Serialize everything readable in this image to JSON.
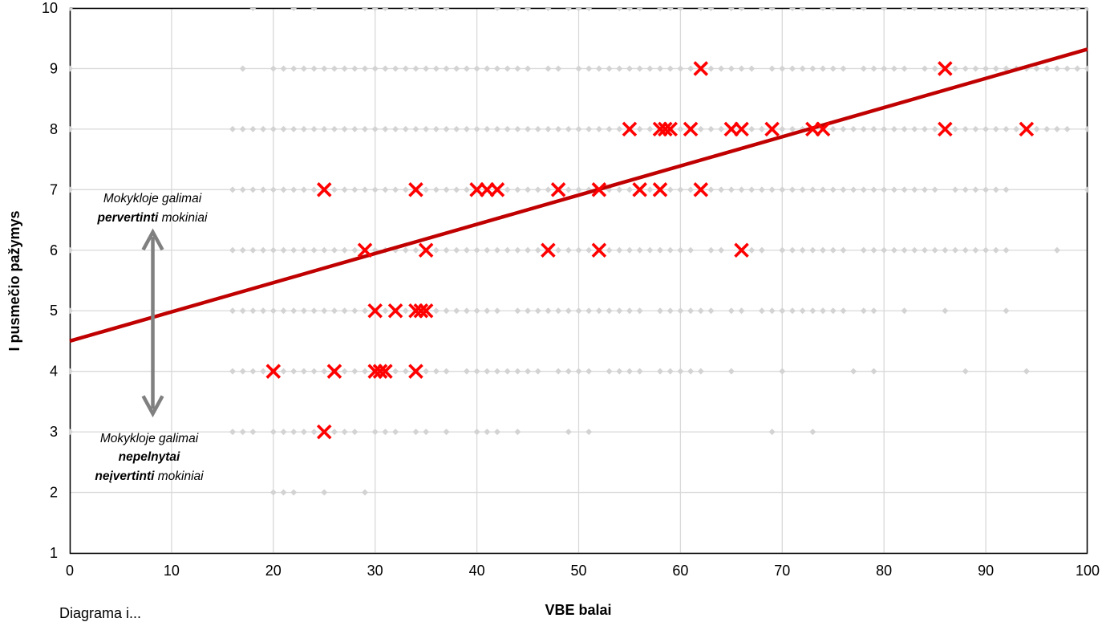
{
  "chart_data": {
    "type": "scatter",
    "title": "",
    "xlabel": "VBE balai",
    "ylabel": "I pusmečio pažymys",
    "xlim": [
      0,
      100
    ],
    "ylim": [
      1,
      10
    ],
    "x_ticks": [
      "0",
      "10",
      "20",
      "30",
      "40",
      "50",
      "60",
      "70",
      "80",
      "90",
      "100"
    ],
    "y_ticks": [
      "1",
      "2",
      "3",
      "4",
      "5",
      "6",
      "7",
      "8",
      "9",
      "10"
    ],
    "grid": true,
    "colors": {
      "grid": "#d9d9d9",
      "background_points": "#d3d3d3",
      "highlight": "#ff0000",
      "trend": "#c00000",
      "arrow": "#808080"
    },
    "background_points": [
      {
        "y": 10,
        "x": [
          0,
          18,
          22,
          24,
          29,
          30,
          31,
          33,
          34,
          36,
          37,
          42,
          44,
          45,
          47,
          49,
          50,
          51,
          54,
          55,
          56,
          58,
          59,
          60,
          62,
          63,
          65,
          66,
          68,
          69,
          71,
          72,
          74,
          75,
          77,
          78,
          80,
          82,
          83,
          85,
          86,
          87,
          88,
          89,
          90,
          91,
          92,
          93,
          94,
          95,
          96,
          97,
          98,
          99,
          100
        ]
      },
      {
        "y": 9,
        "x": [
          0,
          17,
          20,
          21,
          22,
          23,
          24,
          25,
          26,
          27,
          28,
          29,
          30,
          31,
          32,
          33,
          34,
          35,
          36,
          37,
          38,
          39,
          40,
          41,
          42,
          43,
          44,
          45,
          47,
          48,
          50,
          51,
          52,
          53,
          54,
          55,
          56,
          57,
          58,
          59,
          60,
          61,
          62,
          63,
          64,
          65,
          66,
          67,
          69,
          70,
          71,
          72,
          73,
          74,
          75,
          76,
          78,
          79,
          80,
          81,
          82,
          84,
          85,
          86,
          87,
          88,
          89,
          90,
          91,
          92,
          93,
          94,
          95,
          96,
          97,
          98,
          99,
          100
        ]
      },
      {
        "y": 8,
        "x": [
          0,
          16,
          17,
          18,
          19,
          20,
          21,
          22,
          23,
          24,
          25,
          26,
          27,
          28,
          29,
          30,
          31,
          32,
          33,
          34,
          35,
          36,
          37,
          38,
          39,
          40,
          41,
          42,
          43,
          44,
          45,
          46,
          47,
          48,
          49,
          50,
          51,
          52,
          53,
          54,
          56,
          57,
          60,
          62,
          63,
          64,
          67,
          68,
          70,
          71,
          72,
          75,
          76,
          77,
          78,
          79,
          80,
          81,
          82,
          83,
          84,
          85,
          87,
          88,
          89,
          90,
          91,
          92,
          93,
          95,
          96,
          97,
          98,
          100
        ]
      },
      {
        "y": 7,
        "x": [
          0,
          16,
          17,
          18,
          19,
          20,
          21,
          22,
          23,
          24,
          26,
          27,
          28,
          29,
          30,
          31,
          32,
          33,
          35,
          36,
          37,
          38,
          39,
          43,
          44,
          45,
          46,
          47,
          49,
          50,
          51,
          53,
          54,
          55,
          57,
          59,
          60,
          61,
          63,
          64,
          65,
          66,
          67,
          68,
          69,
          70,
          71,
          72,
          73,
          74,
          75,
          76,
          77,
          78,
          79,
          80,
          81,
          82,
          83,
          84,
          85,
          87,
          88,
          89,
          90,
          91,
          92,
          100
        ]
      },
      {
        "y": 6,
        "x": [
          0,
          16,
          17,
          18,
          19,
          20,
          21,
          22,
          23,
          24,
          25,
          26,
          27,
          28,
          30,
          31,
          32,
          33,
          34,
          36,
          37,
          38,
          39,
          40,
          41,
          42,
          43,
          44,
          45,
          46,
          48,
          49,
          50,
          51,
          53,
          54,
          55,
          56,
          57,
          58,
          59,
          60,
          61,
          63,
          64,
          67,
          68,
          70,
          71,
          72,
          73,
          74,
          75,
          76,
          78,
          79,
          80,
          81,
          82,
          83,
          84,
          85,
          86,
          87,
          88,
          89,
          90,
          91,
          92,
          97
        ]
      },
      {
        "y": 5,
        "x": [
          0,
          16,
          17,
          18,
          19,
          20,
          21,
          22,
          23,
          24,
          25,
          26,
          27,
          28,
          29,
          31,
          33,
          36,
          37,
          38,
          39,
          40,
          41,
          42,
          44,
          45,
          46,
          47,
          48,
          49,
          50,
          51,
          52,
          53,
          54,
          55,
          56,
          58,
          59,
          60,
          61,
          62,
          63,
          65,
          66,
          68,
          69,
          70,
          71,
          72,
          73,
          74,
          75,
          76,
          78,
          79,
          82,
          86,
          92
        ]
      },
      {
        "y": 4,
        "x": [
          0,
          16,
          17,
          18,
          19,
          21,
          22,
          23,
          24,
          25,
          27,
          28,
          29,
          32,
          33,
          35,
          36,
          37,
          39,
          40,
          41,
          42,
          43,
          44,
          45,
          46,
          48,
          49,
          50,
          51,
          53,
          54,
          55,
          56,
          58,
          59,
          60,
          61,
          62,
          65,
          70,
          77,
          79,
          88,
          94
        ]
      },
      {
        "y": 3,
        "x": [
          0,
          16,
          17,
          18,
          20,
          21,
          22,
          23,
          24,
          26,
          27,
          28,
          30,
          31,
          32,
          34,
          35,
          37,
          40,
          41,
          42,
          44,
          49,
          51,
          69,
          73
        ]
      },
      {
        "y": 2,
        "x": [
          20,
          21,
          22,
          25,
          29
        ]
      }
    ],
    "highlighted_points": [
      {
        "x": 20,
        "y": 4
      },
      {
        "x": 26,
        "y": 4
      },
      {
        "x": 30,
        "y": 4
      },
      {
        "x": 30.5,
        "y": 4
      },
      {
        "x": 31,
        "y": 4
      },
      {
        "x": 34,
        "y": 4
      },
      {
        "x": 25,
        "y": 3
      },
      {
        "x": 30,
        "y": 5
      },
      {
        "x": 32,
        "y": 5
      },
      {
        "x": 34,
        "y": 5
      },
      {
        "x": 34.5,
        "y": 5
      },
      {
        "x": 35,
        "y": 5
      },
      {
        "x": 29,
        "y": 6
      },
      {
        "x": 35,
        "y": 6
      },
      {
        "x": 47,
        "y": 6
      },
      {
        "x": 52,
        "y": 6
      },
      {
        "x": 66,
        "y": 6
      },
      {
        "x": 25,
        "y": 7
      },
      {
        "x": 34,
        "y": 7
      },
      {
        "x": 40,
        "y": 7
      },
      {
        "x": 41,
        "y": 7
      },
      {
        "x": 42,
        "y": 7
      },
      {
        "x": 48,
        "y": 7
      },
      {
        "x": 52,
        "y": 7
      },
      {
        "x": 56,
        "y": 7
      },
      {
        "x": 58,
        "y": 7
      },
      {
        "x": 62,
        "y": 7
      },
      {
        "x": 55,
        "y": 8
      },
      {
        "x": 58,
        "y": 8
      },
      {
        "x": 58.5,
        "y": 8
      },
      {
        "x": 59,
        "y": 8
      },
      {
        "x": 61,
        "y": 8
      },
      {
        "x": 65,
        "y": 8
      },
      {
        "x": 66,
        "y": 8
      },
      {
        "x": 69,
        "y": 8
      },
      {
        "x": 73,
        "y": 8
      },
      {
        "x": 74,
        "y": 8
      },
      {
        "x": 86,
        "y": 8
      },
      {
        "x": 94,
        "y": 8
      },
      {
        "x": 62,
        "y": 9
      },
      {
        "x": 86,
        "y": 9
      }
    ],
    "trend_line": {
      "x": [
        0,
        100
      ],
      "y": [
        4.5,
        9.32
      ]
    },
    "annotations": {
      "top": {
        "line1": "Mokykloje galimai",
        "line2_bold": "pervertinti",
        "line2_rest": " mokiniai"
      },
      "bottom": {
        "line1": "Mokykloje galimai",
        "line2_bold": "nepelnytai",
        "line3_bold": "neįvertinti",
        "line3_rest": " mokiniai"
      }
    },
    "arrow": {
      "x": 8,
      "y_top": 6.3,
      "y_bottom": 3.3
    }
  },
  "footer_text": "Diagrama i..."
}
